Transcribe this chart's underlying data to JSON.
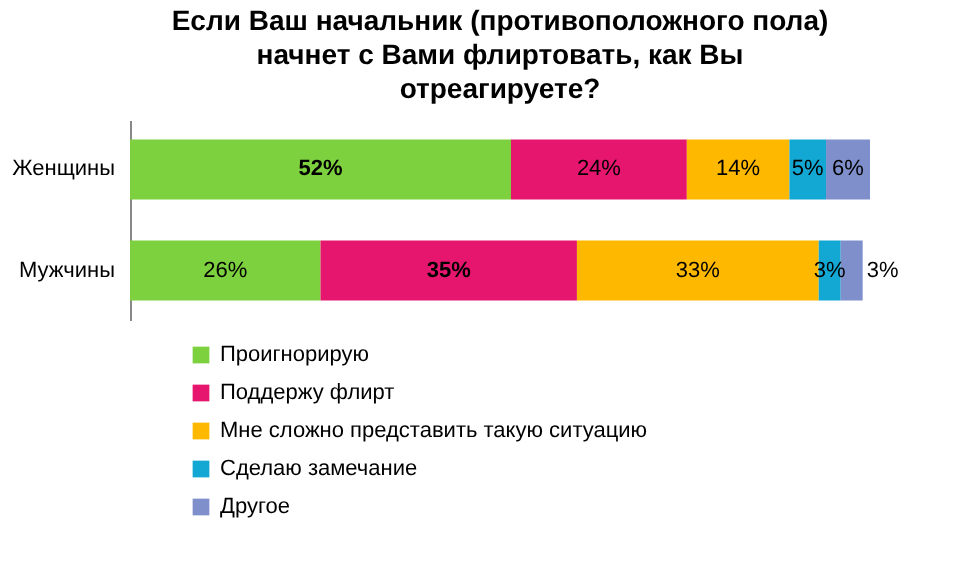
{
  "chart_data": {
    "type": "bar",
    "orientation": "horizontal",
    "stacked": true,
    "title": "Если Ваш начальник (противоположного пола)\nначнет с Вами флиртовать, как Вы\nотреагируете?",
    "categories": [
      "Женщины",
      "Мужчины"
    ],
    "series": [
      {
        "name": "Проигнорирую",
        "color": "#7dd13f",
        "values": [
          52,
          26
        ],
        "value_labels": [
          "52%",
          "26%"
        ]
      },
      {
        "name": "Поддержу флирт",
        "color": "#e6166f",
        "values": [
          24,
          35
        ],
        "value_labels": [
          "24%",
          "35%"
        ]
      },
      {
        "name": "Мне сложно представить  такую ситуацию",
        "color": "#ffb800",
        "values": [
          14,
          33
        ],
        "value_labels": [
          "14%",
          "33%"
        ]
      },
      {
        "name": "Сделаю замечание",
        "color": "#13a8d4",
        "values": [
          5,
          3
        ],
        "value_labels": [
          "5%",
          "3%"
        ]
      },
      {
        "name": "Другое",
        "color": "#7f8fcb",
        "values": [
          6,
          3
        ],
        "value_labels": [
          "6%",
          "3%"
        ]
      }
    ],
    "legend": "bottom left",
    "grid": false
  }
}
